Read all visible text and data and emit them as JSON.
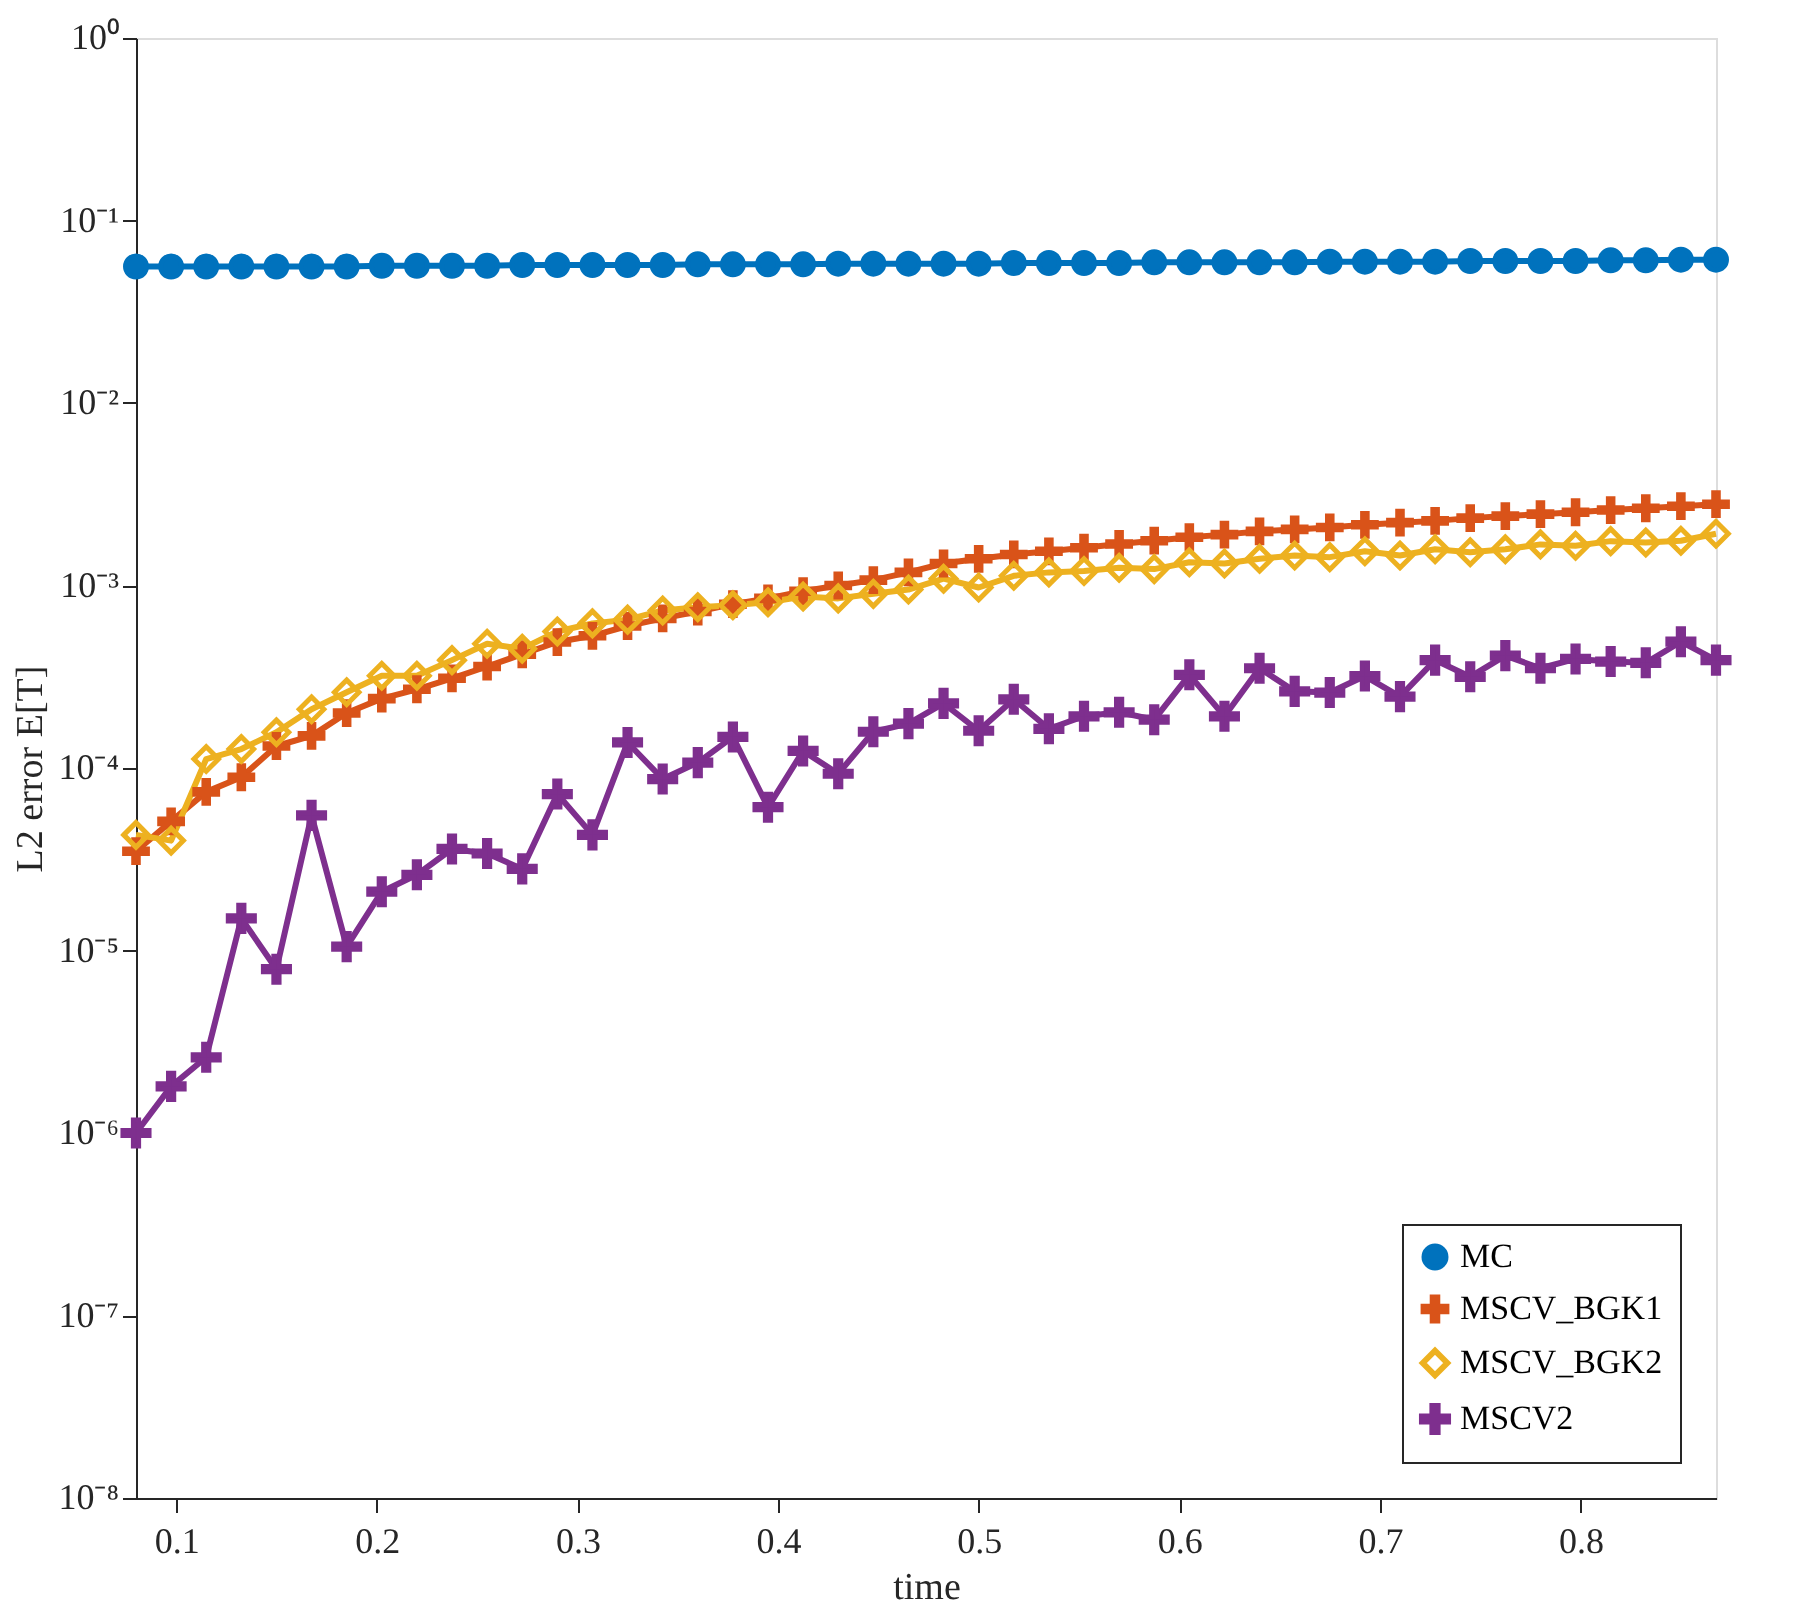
{
  "chart_data": {
    "type": "line",
    "xlabel": "time",
    "ylabel": "L2 error E[T]",
    "log": "y",
    "grid": false,
    "legend": "bottom right",
    "x": [
      0.08,
      0.0975,
      0.115,
      0.1325,
      0.15,
      0.1675,
      0.185,
      0.2025,
      0.22,
      0.2375,
      0.255,
      0.2725,
      0.29,
      0.3075,
      0.325,
      0.3425,
      0.36,
      0.3775,
      0.395,
      0.4125,
      0.43,
      0.4475,
      0.465,
      0.4825,
      0.5,
      0.5175,
      0.535,
      0.5525,
      0.57,
      0.5875,
      0.605,
      0.6225,
      0.64,
      0.6575,
      0.675,
      0.6925,
      0.71,
      0.7275,
      0.745,
      0.7625,
      0.78,
      0.7975,
      0.815,
      0.8325,
      0.85,
      0.8675
    ],
    "xlim": [
      0.08,
      0.8675
    ],
    "xticks": [
      0.1,
      0.2,
      0.3,
      0.4,
      0.5,
      0.6,
      0.7,
      0.8
    ],
    "ylim": [
      1e-08,
      1
    ],
    "yticks": [
      {
        "value": 1e-08,
        "label": "10⁻⁸"
      },
      {
        "value": 1e-07,
        "label": "10⁻⁷"
      },
      {
        "value": 1e-06,
        "label": "10⁻⁶"
      },
      {
        "value": 1e-05,
        "label": "10⁻⁵"
      },
      {
        "value": 0.0001,
        "label": "10⁻⁴"
      },
      {
        "value": 0.001,
        "label": "10⁻³"
      },
      {
        "value": 0.01,
        "label": "10⁻²"
      },
      {
        "value": 0.1,
        "label": "10⁻¹"
      },
      {
        "value": 1,
        "label": "10⁰"
      }
    ],
    "line_style": "solid",
    "series": [
      {
        "name": "MC",
        "color": "#0072bd",
        "marker": "circle",
        "values": [
          0.056,
          0.056,
          0.056,
          0.056,
          0.056,
          0.056,
          0.056,
          0.0565,
          0.0565,
          0.0565,
          0.0565,
          0.057,
          0.057,
          0.057,
          0.057,
          0.057,
          0.0575,
          0.0575,
          0.0575,
          0.0575,
          0.058,
          0.058,
          0.058,
          0.058,
          0.058,
          0.0585,
          0.0585,
          0.0585,
          0.0585,
          0.059,
          0.059,
          0.059,
          0.059,
          0.059,
          0.0595,
          0.0595,
          0.0595,
          0.0595,
          0.06,
          0.06,
          0.06,
          0.06,
          0.0605,
          0.0605,
          0.061,
          0.061
        ]
      },
      {
        "name": "MSCV_BGK1",
        "color": "#d95319",
        "marker": "cross",
        "values": [
          3.5e-05,
          5.1e-05,
          7.4e-05,
          8.9e-05,
          0.000132,
          0.00015,
          0.0002,
          0.00024,
          0.00027,
          0.00031,
          0.00036,
          0.00042,
          0.00049,
          0.00053,
          0.0006,
          0.00066,
          0.00072,
          0.00079,
          0.00085,
          0.00093,
          0.001,
          0.00107,
          0.00118,
          0.00132,
          0.0014,
          0.00148,
          0.00154,
          0.00161,
          0.00169,
          0.00176,
          0.00184,
          0.0019,
          0.00198,
          0.00203,
          0.00208,
          0.00215,
          0.00221,
          0.00226,
          0.00234,
          0.0024,
          0.00246,
          0.00252,
          0.00259,
          0.00265,
          0.00272,
          0.00279
        ]
      },
      {
        "name": "MSCV_BGK2",
        "color": "#edb120",
        "marker": "diamond",
        "values": [
          4.3e-05,
          4e-05,
          0.000112,
          0.000127,
          0.000157,
          0.00021,
          0.00026,
          0.00032,
          0.00032,
          0.00039,
          0.00048,
          0.00045,
          0.00056,
          0.00062,
          0.00065,
          0.00073,
          0.00076,
          0.00078,
          0.00081,
          0.00087,
          0.00085,
          0.0009,
          0.00095,
          0.00109,
          0.000975,
          0.00113,
          0.00118,
          0.0012,
          0.00125,
          0.00123,
          0.00134,
          0.00132,
          0.0014,
          0.00146,
          0.00143,
          0.00154,
          0.00146,
          0.00158,
          0.00152,
          0.00158,
          0.00168,
          0.00165,
          0.00175,
          0.00172,
          0.00176,
          0.00192
        ]
      },
      {
        "name": "MSCV2",
        "color": "#7e2f8e",
        "marker": "cross",
        "values": [
          1e-06,
          1.8e-06,
          2.6e-06,
          1.5e-05,
          7.9e-06,
          5.5e-05,
          1.05e-05,
          2.1e-05,
          2.6e-05,
          3.6e-05,
          3.4e-05,
          2.8e-05,
          7.2e-05,
          4.3e-05,
          0.000138,
          8.7e-05,
          0.000107,
          0.000148,
          6.1e-05,
          0.000124,
          9.3e-05,
          0.000158,
          0.000175,
          0.000226,
          0.00016,
          0.000238,
          0.000164,
          0.000192,
          0.000202,
          0.000184,
          0.000324,
          0.000192,
          0.000352,
          0.000263,
          0.000259,
          0.000319,
          0.000246,
          0.00039,
          0.000316,
          0.000413,
          0.000352,
          0.000396,
          0.000383,
          0.000377,
          0.000492,
          0.00039
        ]
      }
    ]
  }
}
